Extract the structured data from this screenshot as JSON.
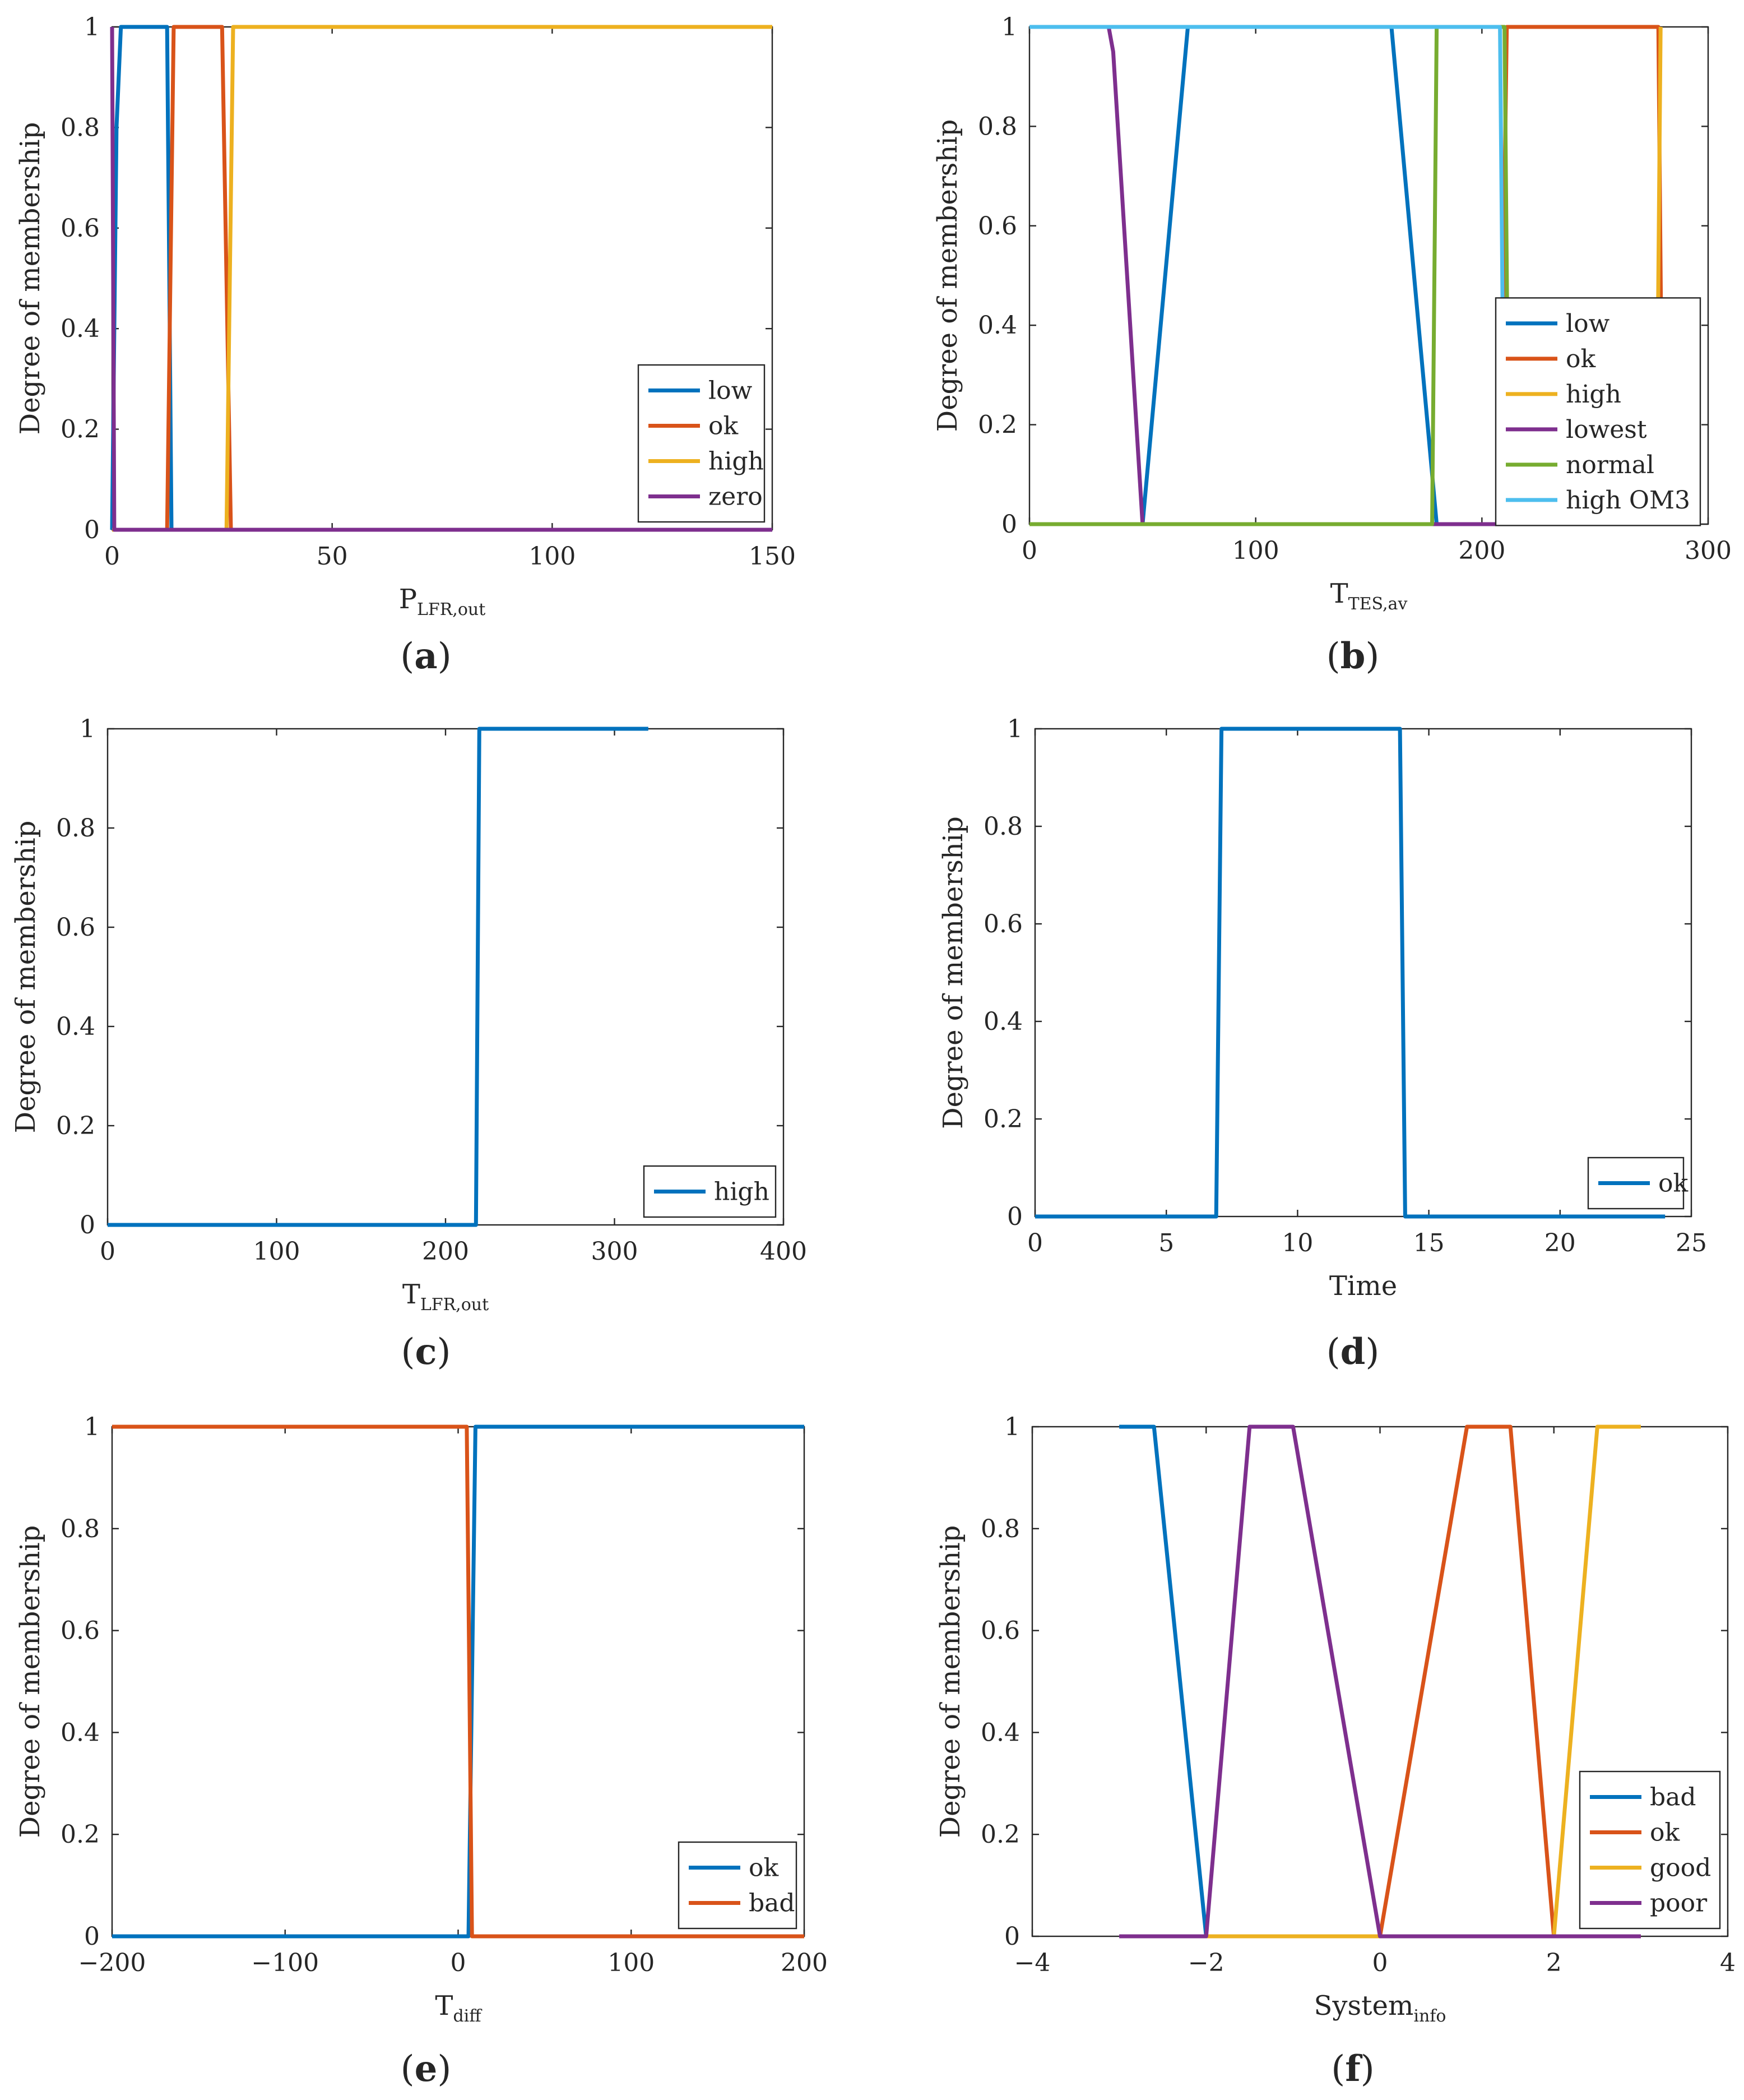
{
  "colors": {
    "blue": "#0072BD",
    "orange": "#D95319",
    "yellow": "#EDB120",
    "purple": "#7E2F8E",
    "green": "#77AC30",
    "cyan": "#4DBEEE"
  },
  "chart_data": [
    {
      "type": "line",
      "panel": "(a)",
      "panel_letter": "a",
      "ylabel": "Degree of membership",
      "xlabel": "P",
      "xlabel_sub": "LFR,out",
      "xlim": [
        0,
        150
      ],
      "ylim": [
        0,
        1
      ],
      "xticks": [
        0,
        50,
        100,
        150
      ],
      "yticks": [
        0,
        0.2,
        0.4,
        0.6,
        0.8,
        1
      ],
      "ytick_labels": [
        "0",
        "0.2",
        "0.4",
        "0.6",
        "0.8",
        "1"
      ],
      "legend_position": "bottom-right",
      "series": [
        {
          "name": "low",
          "color": "#0072BD",
          "x": [
            0,
            1,
            2,
            12.5,
            13.5,
            150
          ],
          "y": [
            0,
            0.8,
            1,
            1,
            0,
            0
          ]
        },
        {
          "name": "ok",
          "color": "#D95319",
          "x": [
            0,
            12.5,
            14,
            25,
            27,
            150
          ],
          "y": [
            0,
            0,
            1,
            1,
            0,
            0
          ]
        },
        {
          "name": "high",
          "color": "#EDB120",
          "x": [
            0,
            26,
            27.5,
            150
          ],
          "y": [
            0,
            0,
            1,
            1
          ]
        },
        {
          "name": "zero",
          "color": "#7E2F8E",
          "x": [
            0,
            0.5,
            150
          ],
          "y": [
            1,
            0,
            0
          ]
        }
      ]
    },
    {
      "type": "line",
      "panel": "(b)",
      "panel_letter": "b",
      "ylabel": "Degree of membership",
      "xlabel": "T",
      "xlabel_sub": "TES,av",
      "xlim": [
        0,
        300
      ],
      "ylim": [
        0,
        1
      ],
      "xticks": [
        0,
        100,
        200,
        300
      ],
      "yticks": [
        0,
        0.2,
        0.4,
        0.6,
        0.8,
        1
      ],
      "ytick_labels": [
        "0",
        "0.2",
        "0.4",
        "0.6",
        "0.8",
        "1"
      ],
      "legend_position": "right-center",
      "series": [
        {
          "name": "low",
          "color": "#0072BD",
          "x": [
            0,
            50,
            70,
            160,
            180,
            280
          ],
          "y": [
            0,
            0,
            1,
            1,
            0,
            0
          ]
        },
        {
          "name": "ok",
          "color": "#D95319",
          "x": [
            0,
            208,
            211,
            278,
            280
          ],
          "y": [
            0,
            0,
            1,
            1,
            0
          ]
        },
        {
          "name": "high",
          "color": "#EDB120",
          "x": [
            0,
            277,
            279
          ],
          "y": [
            0,
            0,
            1
          ]
        },
        {
          "name": "lowest",
          "color": "#7E2F8E",
          "x": [
            35,
            37,
            50,
            211
          ],
          "y": [
            1,
            0.95,
            0,
            0
          ]
        },
        {
          "name": "normal",
          "color": "#77AC30",
          "x": [
            0,
            178,
            180,
            210,
            212,
            279
          ],
          "y": [
            0,
            0,
            1,
            1,
            0,
            0
          ]
        },
        {
          "name": "high OM3",
          "color": "#4DBEEE",
          "x": [
            0,
            208,
            210,
            279
          ],
          "y": [
            1,
            1,
            0,
            0
          ]
        }
      ]
    },
    {
      "type": "line",
      "panel": "(c)",
      "panel_letter": "c",
      "ylabel": "Degree of membership",
      "xlabel": "T",
      "xlabel_sub": "LFR,out",
      "xlim": [
        0,
        400
      ],
      "ylim": [
        0,
        1
      ],
      "xticks": [
        0,
        100,
        200,
        300,
        400
      ],
      "yticks": [
        0,
        0.2,
        0.4,
        0.6,
        0.8,
        1
      ],
      "ytick_labels": [
        "0",
        "0.2",
        "0.4",
        "0.6",
        "0.8",
        "1"
      ],
      "legend_position": "bottom-right",
      "series": [
        {
          "name": "high",
          "color": "#0072BD",
          "x": [
            0,
            218,
            220,
            320
          ],
          "y": [
            0,
            0,
            1,
            1
          ]
        }
      ]
    },
    {
      "type": "line",
      "panel": "(d)",
      "panel_letter": "d",
      "ylabel": "Degree of membership",
      "xlabel": "Time",
      "xlabel_sub": "",
      "xlim": [
        0,
        25
      ],
      "ylim": [
        0,
        1
      ],
      "xticks": [
        0,
        5,
        10,
        15,
        20,
        25
      ],
      "yticks": [
        0,
        0.2,
        0.4,
        0.6,
        0.8,
        1
      ],
      "ytick_labels": [
        "0",
        "0.2",
        "0.4",
        "0.6",
        "0.8",
        "1"
      ],
      "legend_position": "bottom-right",
      "series": [
        {
          "name": "ok",
          "color": "#0072BD",
          "x": [
            0,
            6.9,
            7.1,
            13.9,
            14.1,
            24
          ],
          "y": [
            0,
            0,
            1,
            1,
            0,
            0
          ]
        }
      ]
    },
    {
      "type": "line",
      "panel": "(e)",
      "panel_letter": "e",
      "ylabel": "Degree of membership",
      "xlabel": "T",
      "xlabel_sub": "diff",
      "xlim": [
        -200,
        200
      ],
      "ylim": [
        0,
        1
      ],
      "xticks": [
        -200,
        -100,
        0,
        100,
        200
      ],
      "xtick_labels": [
        "−200",
        "−100",
        "0",
        "100",
        "200"
      ],
      "yticks": [
        0,
        0.2,
        0.4,
        0.6,
        0.8,
        1
      ],
      "ytick_labels": [
        "0",
        "0.2",
        "0.4",
        "0.6",
        "0.8",
        "1"
      ],
      "legend_position": "bottom-right",
      "series": [
        {
          "name": "ok",
          "color": "#0072BD",
          "x": [
            -200,
            6,
            10,
            200
          ],
          "y": [
            0,
            0,
            1,
            1
          ]
        },
        {
          "name": "bad",
          "color": "#D95319",
          "x": [
            -200,
            5,
            8,
            200
          ],
          "y": [
            1,
            1,
            0,
            0
          ]
        }
      ]
    },
    {
      "type": "line",
      "panel": "(f)",
      "panel_letter": "f",
      "ylabel": "Degree of membership",
      "xlabel": "System",
      "xlabel_sub": "info",
      "xlim": [
        -4,
        4
      ],
      "ylim": [
        0,
        1
      ],
      "xticks": [
        -4,
        -2,
        0,
        2,
        4
      ],
      "xtick_labels": [
        "−4",
        "−2",
        "0",
        "2",
        "4"
      ],
      "yticks": [
        0,
        0.2,
        0.4,
        0.6,
        0.8,
        1
      ],
      "ytick_labels": [
        "0",
        "0.2",
        "0.4",
        "0.6",
        "0.8",
        "1"
      ],
      "legend_position": "bottom-right",
      "series": [
        {
          "name": "bad",
          "color": "#0072BD",
          "x": [
            -3,
            -2.6,
            -2,
            3
          ],
          "y": [
            1,
            1,
            0,
            0
          ]
        },
        {
          "name": "ok",
          "color": "#D95319",
          "x": [
            -2,
            0,
            1,
            1.5,
            2,
            3
          ],
          "y": [
            0,
            0,
            1,
            1,
            0,
            0
          ]
        },
        {
          "name": "good",
          "color": "#EDB120",
          "x": [
            -2,
            2,
            2.5,
            3
          ],
          "y": [
            0,
            0,
            1,
            1
          ]
        },
        {
          "name": "poor",
          "color": "#7E2F8E",
          "x": [
            -3,
            -2,
            -1.5,
            -1,
            0,
            3
          ],
          "y": [
            0,
            0,
            1,
            1,
            0,
            0
          ]
        }
      ]
    }
  ]
}
